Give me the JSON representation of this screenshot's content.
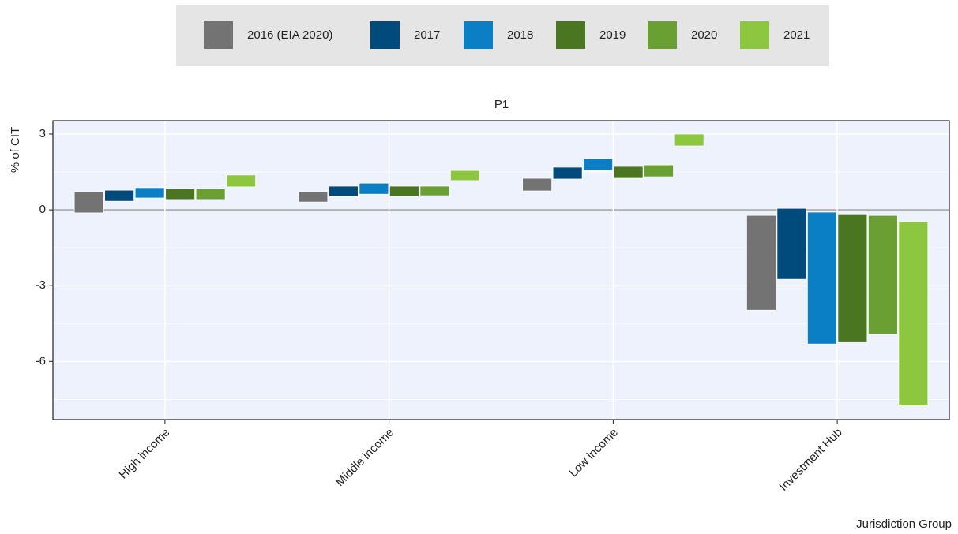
{
  "chart_data": {
    "type": "floating-bar",
    "title": "P1",
    "y_label": "% of CIT",
    "x_label": "Jurisdiction Group",
    "categories": [
      "High income",
      "Middle income",
      "Low income",
      "Investment Hub"
    ],
    "series": [
      {
        "name": "2016 (EIA 2020)",
        "color": "#737373",
        "low": [
          -0.12,
          0.31,
          0.75,
          -3.97
        ],
        "high": [
          0.72,
          0.72,
          1.25,
          -0.22
        ]
      },
      {
        "name": "2017",
        "color": "#004a7c",
        "low": [
          0.34,
          0.53,
          1.22,
          -2.75
        ],
        "high": [
          0.78,
          0.94,
          1.69,
          0.06
        ]
      },
      {
        "name": "2018",
        "color": "#0a7fc6",
        "low": [
          0.47,
          0.62,
          1.56,
          -5.31
        ],
        "high": [
          0.88,
          1.06,
          2.03,
          -0.09
        ]
      },
      {
        "name": "2019",
        "color": "#4a7622",
        "low": [
          0.41,
          0.53,
          1.25,
          -5.22
        ],
        "high": [
          0.84,
          0.94,
          1.72,
          -0.16
        ]
      },
      {
        "name": "2020",
        "color": "#6a9f33",
        "low": [
          0.41,
          0.56,
          1.31,
          -4.94
        ],
        "high": [
          0.84,
          0.94,
          1.78,
          -0.22
        ]
      },
      {
        "name": "2021",
        "color": "#8dc63f",
        "low": [
          0.91,
          1.16,
          2.53,
          -7.75
        ],
        "high": [
          1.38,
          1.56,
          3.0,
          -0.47
        ]
      }
    ],
    "ylim": [
      -8.3,
      3.53
    ],
    "yticks": [
      -6,
      -3,
      0,
      3
    ],
    "yticks_minor": [
      -7.5,
      -4.5,
      -1.5,
      1.5
    ],
    "grid": true,
    "legend": "top"
  }
}
